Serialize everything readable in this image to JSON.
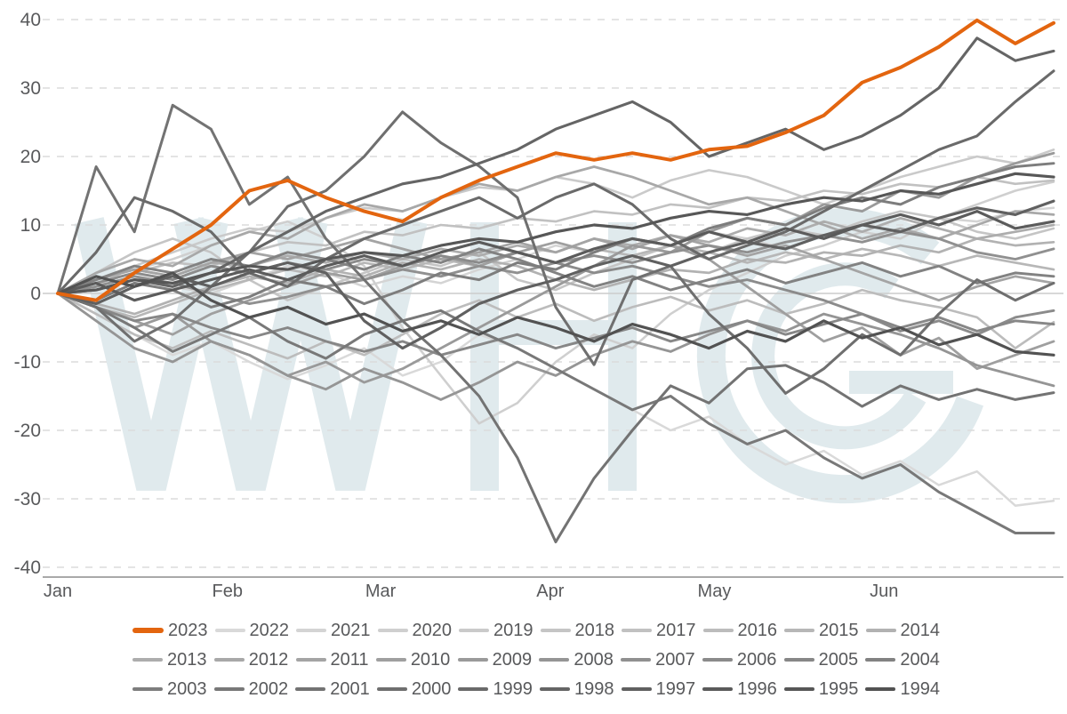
{
  "chart_data": {
    "type": "line",
    "title": "",
    "xlabel": "",
    "ylabel": "",
    "x_axis": {
      "months": [
        "Jan",
        "Feb",
        "Mar",
        "Apr",
        "May",
        "Jun"
      ],
      "month_start_days": [
        0,
        31,
        59,
        90,
        120,
        151
      ],
      "span_days": 182
    },
    "y_axis": {
      "ticks": [
        40,
        30,
        20,
        10,
        0,
        -10,
        -20,
        -30,
        -40
      ],
      "min": -40,
      "max": 40,
      "gridlines": "dashed"
    },
    "sample_interval_days": 7,
    "highlight_series": "2023",
    "colors": {
      "accent": "#E3650F",
      "text": "#58595B",
      "gridline": "#DBDBDB",
      "zero_line": "#CCCCCC",
      "axis_line": "#A9A9A9",
      "background": "#FFFFFF"
    },
    "watermark": {
      "text": "WHG",
      "color": "#E0EAED"
    },
    "legend_rows": [
      [
        "2023",
        "2022",
        "2021",
        "2020",
        "2019",
        "2018",
        "2017",
        "2016",
        "2015",
        "2014"
      ],
      [
        "2013",
        "2012",
        "2011",
        "2010",
        "2009",
        "2008",
        "2007",
        "2006",
        "2005",
        "2004"
      ],
      [
        "2003",
        "2002",
        "2001",
        "2000",
        "1999",
        "1998",
        "1997",
        "1996",
        "1995",
        "1994"
      ]
    ],
    "series": [
      {
        "name": "2023",
        "color": "#E3650F",
        "values": [
          0,
          -1,
          3,
          6.5,
          10,
          15,
          16.5,
          14,
          12,
          10.5,
          14,
          16.5,
          18.5,
          20.5,
          19.5,
          20.5,
          19.5,
          21,
          21.5,
          23.5,
          26,
          30.8,
          33,
          36,
          39.9,
          36.5,
          39.5
        ]
      },
      {
        "name": "2022",
        "color": "#D9D9D9",
        "values": [
          0,
          -3,
          -6,
          -9,
          -7,
          -10,
          -12.5,
          -10.5,
          -8,
          -12,
          -10,
          -6,
          -8,
          -11,
          -14,
          -17,
          -20,
          -18,
          -22,
          -25,
          -23,
          -26.5,
          -24.5,
          -28,
          -26,
          -31,
          -30.3
        ]
      },
      {
        "name": "2021",
        "color": "#D4D4D4",
        "values": [
          0,
          1,
          2.5,
          1,
          0,
          2,
          4,
          3,
          1,
          2.5,
          1.5,
          3.5,
          5,
          7,
          6,
          8,
          7,
          9,
          8,
          6.5,
          8.5,
          10,
          9,
          11,
          10.5,
          12,
          12.5
        ]
      },
      {
        "name": "2020",
        "color": "#CFCFCF",
        "values": [
          0,
          2,
          3.5,
          5,
          7,
          9,
          10.5,
          8,
          4,
          -5,
          -12,
          -19,
          -16,
          -10,
          -6,
          -8,
          -3,
          0.5,
          3,
          5.5,
          7,
          9,
          8,
          11,
          13,
          15,
          16.3
        ]
      },
      {
        "name": "2019",
        "color": "#CACACA",
        "values": [
          0,
          1,
          4,
          6,
          8,
          9.5,
          9,
          11,
          12.5,
          12,
          14,
          15.5,
          15,
          17,
          16,
          14,
          16.5,
          18,
          17,
          15,
          13,
          15,
          17,
          18.5,
          20,
          19,
          21
        ]
      },
      {
        "name": "2018",
        "color": "#C5C5C5",
        "values": [
          0,
          3,
          6,
          8,
          6,
          2,
          -1,
          1,
          3,
          5,
          4,
          6,
          2,
          0.5,
          3,
          5,
          7,
          6,
          8,
          9.5,
          8.5,
          10.5,
          12,
          11,
          9,
          8,
          9.5
        ]
      },
      {
        "name": "2017",
        "color": "#C1C1C1",
        "values": [
          0,
          1.5,
          3,
          4.5,
          4,
          6,
          7.5,
          7,
          9,
          8.5,
          10,
          9.5,
          11,
          10.5,
          12,
          11.5,
          13,
          12.5,
          14,
          13.5,
          15,
          14.5,
          16,
          15.5,
          17,
          16,
          16.5
        ]
      },
      {
        "name": "2016",
        "color": "#BCBCBC",
        "values": [
          0,
          -3,
          -6,
          -8,
          -5.5,
          -7.5,
          -9.5,
          -7,
          -9,
          -6,
          -3,
          -1,
          -3.5,
          -1.5,
          -4,
          -2,
          -0.5,
          -2.5,
          -1,
          -3,
          -1.5,
          0.5,
          -1,
          -2,
          -3.5,
          -8,
          -4.2
        ]
      },
      {
        "name": "2015",
        "color": "#B7B7B7",
        "values": [
          0,
          -2,
          -3.5,
          -1.5,
          0.5,
          2,
          3.5,
          2.5,
          4.5,
          3.5,
          5,
          4,
          6,
          4.5,
          6.5,
          5.5,
          7,
          6,
          4.5,
          6,
          5,
          6.5,
          5.5,
          4,
          5.5,
          4.5,
          3.5
        ]
      },
      {
        "name": "2014",
        "color": "#B2B2B2",
        "values": [
          0,
          -1.5,
          -3,
          -1,
          1,
          2.5,
          1.5,
          3.5,
          2.5,
          4.5,
          3.5,
          5,
          4,
          2,
          0.5,
          2,
          3.5,
          3,
          5,
          4.5,
          6,
          5.5,
          7,
          6,
          8,
          7,
          7.5
        ]
      },
      {
        "name": "2013",
        "color": "#ADADAD",
        "values": [
          0,
          2,
          3.5,
          2.5,
          4.5,
          4,
          5.5,
          4.5,
          6,
          5,
          6.5,
          5.5,
          7,
          6,
          8,
          7,
          8.5,
          7.5,
          9.5,
          8.5,
          10.5,
          9,
          11,
          9.5,
          8,
          9,
          10
        ]
      },
      {
        "name": "2012",
        "color": "#A8A8A8",
        "values": [
          0,
          3,
          5,
          4,
          7,
          9,
          8,
          11,
          13,
          12,
          14,
          16,
          15,
          17,
          18.5,
          17,
          15,
          13,
          14,
          12,
          10,
          8,
          9.5,
          8,
          10,
          12,
          11.5
        ]
      },
      {
        "name": "2011",
        "color": "#A4A4A4",
        "values": [
          0,
          2,
          3.5,
          2.5,
          4.5,
          6,
          5,
          6.5,
          8,
          6.5,
          5,
          6,
          7.5,
          6,
          8,
          6.5,
          8.5,
          7,
          5.5,
          7,
          5,
          3,
          1,
          -1,
          1,
          2.5,
          1.5
        ]
      },
      {
        "name": "2010",
        "color": "#9F9F9F",
        "values": [
          0,
          -2,
          -4,
          -6,
          -3,
          -1,
          1,
          3,
          2,
          4,
          5.5,
          4,
          6,
          7.5,
          6,
          8,
          7,
          5,
          1,
          -3,
          -7,
          -5,
          -9,
          -6.5,
          -11,
          -9,
          -7
        ]
      },
      {
        "name": "2009",
        "color": "#9A9A9A",
        "values": [
          0,
          -2,
          -5,
          -3,
          -7,
          -9,
          -12,
          -10,
          -13,
          -11,
          -8,
          -5,
          -2,
          1,
          4,
          7,
          6,
          9,
          11,
          10,
          13,
          12,
          15,
          14,
          17,
          19,
          20.5
        ]
      },
      {
        "name": "2008",
        "color": "#959595",
        "values": [
          0,
          -4,
          -8,
          -10,
          -7,
          -9,
          -12,
          -14,
          -11,
          -13,
          -15.5,
          -13,
          -10,
          -12,
          -9,
          -7,
          -8.5,
          -6,
          -4,
          -5.5,
          -3,
          -4.5,
          -6,
          -8,
          -10.5,
          -12,
          -13.5
        ]
      },
      {
        "name": "2007",
        "color": "#909090",
        "values": [
          0,
          1,
          2.5,
          1.5,
          0,
          -1.5,
          -0.5,
          1,
          2,
          3.5,
          2.5,
          4,
          3,
          4.5,
          5.5,
          4.5,
          6,
          7,
          6,
          7.5,
          8.5,
          7.5,
          9,
          8,
          6,
          5,
          6.5
        ]
      },
      {
        "name": "2006",
        "color": "#8B8B8B",
        "values": [
          0,
          1.5,
          3,
          2,
          4,
          3,
          4.5,
          3.5,
          5,
          4,
          5.5,
          4.5,
          6,
          4.5,
          3,
          4,
          2.5,
          1,
          2,
          0.5,
          -1,
          -3,
          -5.5,
          -4,
          -6,
          -3.5,
          -2.5
        ]
      },
      {
        "name": "2005",
        "color": "#878787",
        "values": [
          0,
          -2,
          -4,
          -3,
          -5,
          -6.5,
          -5,
          -7,
          -8.5,
          -7,
          -9,
          -7.5,
          -6,
          -8,
          -6.5,
          -5,
          -7,
          -5.5,
          -4,
          -6,
          -4.5,
          -3,
          -5,
          -3.5,
          -5.5,
          -4,
          -4.5
        ]
      },
      {
        "name": "2004",
        "color": "#828282",
        "values": [
          0,
          2,
          4,
          3,
          5,
          4,
          6,
          5,
          3.5,
          5.5,
          4.5,
          6.5,
          5,
          3,
          1,
          2.5,
          0.5,
          2,
          3.5,
          1.5,
          3,
          4.5,
          2.5,
          4,
          1.5,
          3,
          2.5
        ]
      },
      {
        "name": "2003",
        "color": "#7D7D7D",
        "values": [
          0,
          -1,
          1.5,
          0.5,
          -2,
          -0.5,
          2,
          1,
          -1.5,
          0.5,
          3,
          2,
          4.5,
          3.5,
          6,
          8,
          7,
          9.5,
          11,
          10,
          12.5,
          14,
          13,
          15.5,
          17,
          18.5,
          19
        ]
      },
      {
        "name": "2002",
        "color": "#787878",
        "values": [
          0,
          -2,
          -5,
          -8.5,
          -6,
          -3.5,
          -7,
          -9.5,
          -6,
          -4,
          -2.5,
          -5.5,
          -8,
          -11,
          -14,
          -17,
          -15,
          -19,
          -22,
          -20,
          -24,
          -27,
          -25,
          -29,
          -32,
          -35,
          -35
        ]
      },
      {
        "name": "2001",
        "color": "#737373",
        "values": [
          0,
          18.5,
          9,
          27.5,
          24,
          13,
          17,
          8,
          2,
          -4,
          -9,
          -15,
          -24,
          -36.3,
          -27,
          -20,
          -13.5,
          -16,
          -11,
          -10.5,
          -13,
          -16.5,
          -13.5,
          -15.5,
          -14,
          -15.5,
          -14.5
        ]
      },
      {
        "name": "2000",
        "color": "#6F6F6F",
        "values": [
          0,
          -2,
          -7,
          -4,
          1,
          6,
          12.7,
          15,
          20,
          26.5,
          22,
          18.6,
          14,
          -2,
          -10.4,
          2,
          4,
          -3,
          -8,
          -14.6,
          -11,
          -6,
          -9,
          -3,
          2,
          -1,
          1.5
        ]
      },
      {
        "name": "1999",
        "color": "#6A6A6A",
        "values": [
          0,
          6,
          14,
          12,
          9,
          3,
          1,
          5,
          8,
          10,
          12,
          14,
          11,
          14,
          16,
          13,
          8,
          5,
          7,
          9,
          12,
          15,
          18,
          21,
          23,
          28,
          32.5
        ]
      },
      {
        "name": "1998",
        "color": "#656565",
        "values": [
          0,
          0.5,
          2,
          1,
          3,
          6,
          9,
          12,
          14,
          16,
          17,
          19,
          21,
          24,
          26,
          28,
          25,
          20,
          22,
          24,
          21,
          23,
          26,
          30,
          37.3,
          34,
          35.4
        ]
      },
      {
        "name": "1997",
        "color": "#606060",
        "values": [
          0,
          -1.5,
          1,
          2.5,
          1,
          3,
          4.5,
          3,
          -4,
          -8,
          -5,
          -1.5,
          0.5,
          2,
          4,
          5.5,
          4,
          6,
          7.5,
          6.5,
          8.5,
          10,
          9,
          11,
          12.5,
          11.5,
          13.5
        ]
      },
      {
        "name": "1996",
        "color": "#5B5B5B",
        "values": [
          0,
          1.5,
          -1,
          0.5,
          2,
          3.5,
          2,
          4,
          5.5,
          4,
          6,
          7.5,
          6,
          4.5,
          6.5,
          8,
          7,
          9,
          7.5,
          9.5,
          8,
          10,
          11.5,
          10,
          12,
          9.5,
          10.5
        ]
      },
      {
        "name": "1995",
        "color": "#575757",
        "values": [
          0,
          0.5,
          2,
          1.5,
          3,
          4,
          3.5,
          5,
          6,
          5.5,
          7,
          8,
          7.5,
          9,
          10,
          9.5,
          11,
          12,
          11.5,
          13,
          14,
          13.5,
          15,
          14.5,
          16,
          17.5,
          17
        ]
      },
      {
        "name": "1994",
        "color": "#525252",
        "values": [
          0,
          2.5,
          1,
          3,
          -1,
          -3.5,
          -2,
          -4.5,
          -3,
          -5.5,
          -4,
          -6,
          -3.5,
          -5,
          -7,
          -4.5,
          -6,
          -8,
          -5.5,
          -7,
          -4,
          -6.5,
          -5,
          -7.5,
          -6,
          -8.5,
          -9
        ]
      }
    ]
  }
}
